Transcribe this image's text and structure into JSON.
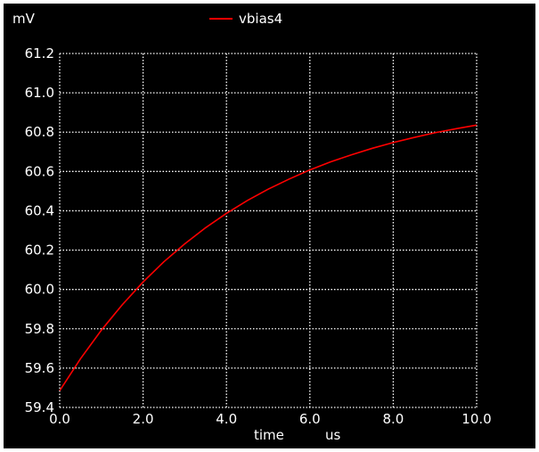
{
  "chart_data": {
    "type": "line",
    "title": "",
    "xlabel": "time",
    "xunit": "us",
    "yunit": "mV",
    "xlim": [
      0.0,
      10.0
    ],
    "ylim": [
      59.4,
      61.2
    ],
    "x_ticks": [
      "0.0",
      "2.0",
      "4.0",
      "6.0",
      "8.0",
      "10.0"
    ],
    "y_ticks": [
      "59.4",
      "59.6",
      "59.8",
      "60.0",
      "60.2",
      "60.4",
      "60.6",
      "60.8",
      "61.0",
      "61.2"
    ],
    "grid": true,
    "legend_position": "top",
    "background_color": "#000000",
    "grid_color": "#ffffff",
    "series": [
      {
        "name": "vbias4",
        "color": "#ff0000",
        "x": [
          0.0,
          0.5,
          1.0,
          1.5,
          2.0,
          2.5,
          3.0,
          3.5,
          4.0,
          4.5,
          5.0,
          5.5,
          6.0,
          6.5,
          7.0,
          7.5,
          8.0,
          8.5,
          9.0,
          9.5,
          10.0
        ],
        "y": [
          59.485,
          59.648,
          59.793,
          59.922,
          60.038,
          60.141,
          60.232,
          60.314,
          60.387,
          60.452,
          60.51,
          60.561,
          60.608,
          60.649,
          60.685,
          60.718,
          60.747,
          60.773,
          60.797,
          60.817,
          60.836
        ]
      }
    ]
  }
}
